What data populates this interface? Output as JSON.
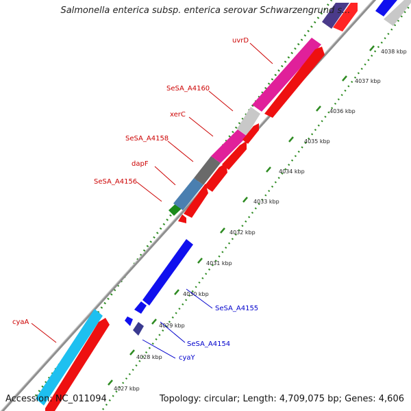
{
  "title": "Salmonella enterica subsp. enterica serovar Schwarzengrund s...",
  "accession": "Accession: NC_011094",
  "summary": "Topology: circular; Length: 4,709,075 bp; Genes: 4,606",
  "colors": {
    "forward_cds": "#e40000",
    "reverse_cds": "#0a0ae8",
    "backbone": "#9a9a9a",
    "tick_mark": "#2e8b22",
    "label_forward": "#cc0000",
    "label_reverse": "#0000cc"
  },
  "scale_ticks": [
    "4027 kbp",
    "4028 kbp",
    "4029 kbp",
    "4030 kbp",
    "4031 kbp",
    "4032 kbp",
    "4033 kbp",
    "4034 kbp",
    "4035 kbp",
    "4036 kbp",
    "4037 kbp",
    "4038 kbp"
  ],
  "gene_labels": {
    "uvrD": "uvrD",
    "sesa_a4160": "SeSA_A4160",
    "xerC": "xerC",
    "sesa_a4158": "SeSA_A4158",
    "dapF": "dapF",
    "sesa_a4156": "SeSA_A4156",
    "cyaA": "cyaA",
    "sesa_a4155": "SeSA_A4155",
    "sesa_a4154": "SeSA_A4154",
    "cyaY": "cyaY"
  }
}
